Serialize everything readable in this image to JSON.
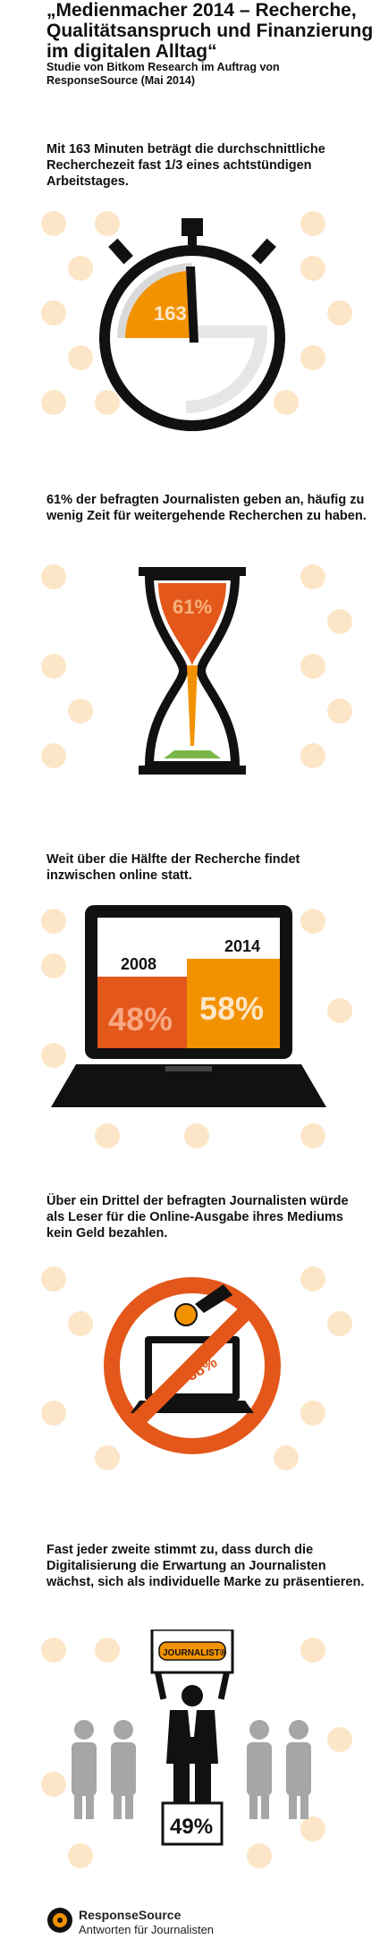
{
  "header": {
    "title": "„Medienmacher 2014 – Recherche, Qualitätsanspruch und Finanzierung im digitalen Alltag“",
    "subtitle": "Studie von Bitkom Research im Auftrag von ResponseSource (Mai 2014)"
  },
  "sections": [
    {
      "text": "Mit 163 Minuten beträgt die durchschnittliche Recherchezeit fast 1/3 eines achtstündigen Arbeitstages.",
      "value": "163"
    },
    {
      "text": "61% der befragten Journalisten geben an, häufig zu wenig Zeit für weitergehende Recherchen zu haben.",
      "value": "61%"
    },
    {
      "text": "Weit über die Hälfte der Recherche findet inzwischen online statt.",
      "bars": [
        {
          "year": "2008",
          "label": "48%"
        },
        {
          "year": "2014",
          "label": "58%"
        }
      ]
    },
    {
      "text": "Über ein Drittel der befragten Journalisten würde als Leser für die Online-Ausgabe ihres Mediums kein Geld bezahlen.",
      "value": "38%"
    },
    {
      "text": "Fast jeder zweite stimmt zu, dass durch die Digitalisierung die Erwartung an Journalisten wächst, sich als individuelle Marke zu präsentieren.",
      "sign": "JOURNALIST®",
      "value": "49%"
    }
  ],
  "footer": {
    "name": "ResponseSource",
    "tagline": "Antworten für Journalisten"
  },
  "colors": {
    "orange": "#f39200",
    "dark_orange": "#e3571b",
    "dot": "#fde6c8",
    "black": "#111111",
    "gray": "#999999",
    "green": "#7ab648"
  }
}
